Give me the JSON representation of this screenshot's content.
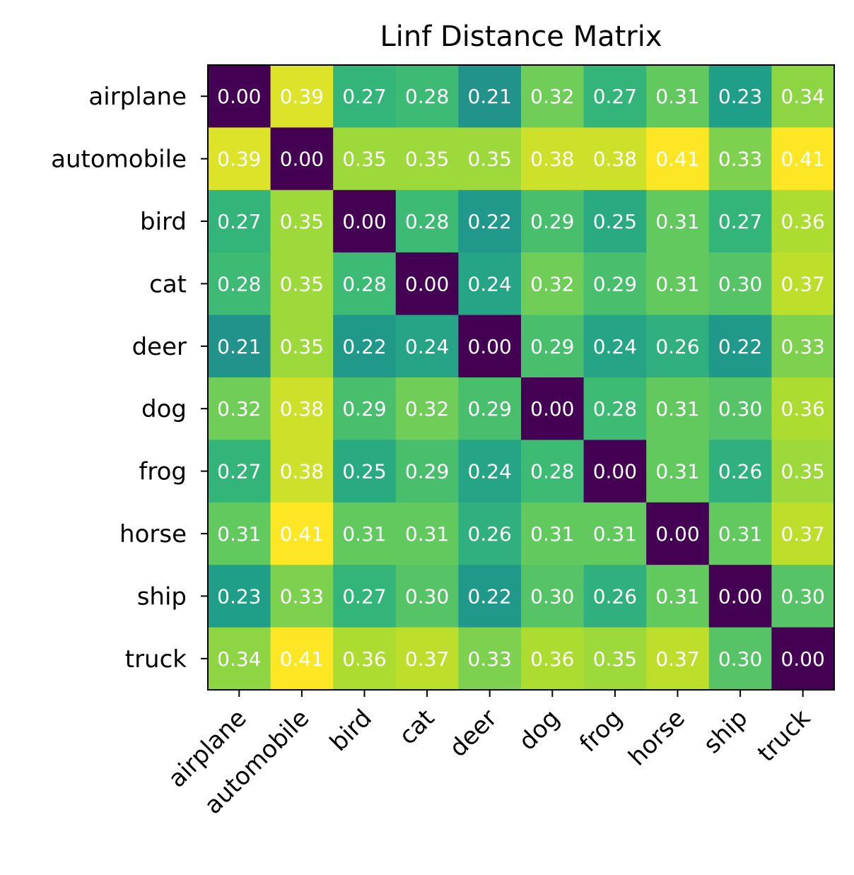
{
  "chart_data": {
    "type": "heatmap",
    "title": "Linf Distance Matrix",
    "xlabel": "",
    "ylabel": "",
    "x_categories": [
      "airplane",
      "automobile",
      "bird",
      "cat",
      "deer",
      "dog",
      "frog",
      "horse",
      "ship",
      "truck"
    ],
    "y_categories": [
      "airplane",
      "automobile",
      "bird",
      "cat",
      "deer",
      "dog",
      "frog",
      "horse",
      "ship",
      "truck"
    ],
    "colormap": "viridis",
    "color_range": [
      0.0,
      0.41
    ],
    "grid": false,
    "values": [
      [
        0.0,
        0.39,
        0.27,
        0.28,
        0.21,
        0.32,
        0.27,
        0.31,
        0.23,
        0.34
      ],
      [
        0.39,
        0.0,
        0.35,
        0.35,
        0.35,
        0.38,
        0.38,
        0.41,
        0.33,
        0.41
      ],
      [
        0.27,
        0.35,
        0.0,
        0.28,
        0.22,
        0.29,
        0.25,
        0.31,
        0.27,
        0.36
      ],
      [
        0.28,
        0.35,
        0.28,
        0.0,
        0.24,
        0.32,
        0.29,
        0.31,
        0.3,
        0.37
      ],
      [
        0.21,
        0.35,
        0.22,
        0.24,
        0.0,
        0.29,
        0.24,
        0.26,
        0.22,
        0.33
      ],
      [
        0.32,
        0.38,
        0.29,
        0.32,
        0.29,
        0.0,
        0.28,
        0.31,
        0.3,
        0.36
      ],
      [
        0.27,
        0.38,
        0.25,
        0.29,
        0.24,
        0.28,
        0.0,
        0.31,
        0.26,
        0.35
      ],
      [
        0.31,
        0.41,
        0.31,
        0.31,
        0.26,
        0.31,
        0.31,
        0.0,
        0.31,
        0.37
      ],
      [
        0.23,
        0.33,
        0.27,
        0.3,
        0.22,
        0.3,
        0.26,
        0.31,
        0.0,
        0.3
      ],
      [
        0.34,
        0.41,
        0.36,
        0.37,
        0.33,
        0.36,
        0.35,
        0.37,
        0.3,
        0.0
      ]
    ]
  }
}
